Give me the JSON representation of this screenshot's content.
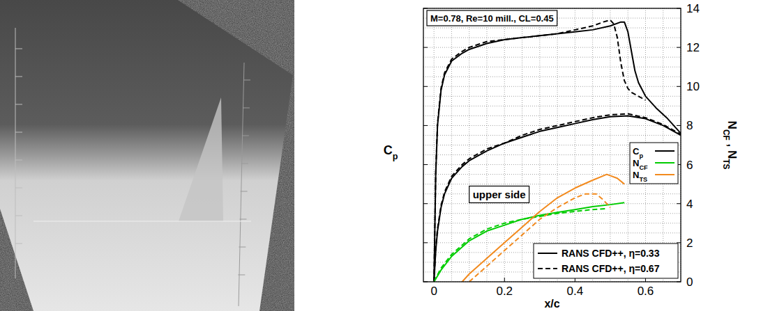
{
  "chart_data": {
    "type": "line",
    "xlabel": "x/c",
    "ylabel_left": "Cp",
    "ylabel_right": "NCF , NTS",
    "annotations": [
      "M=0.78, Re=10 mill., CL=0.45",
      "upper side"
    ],
    "cases": [
      {
        "label": "RANS CFD++, η=0.33",
        "line_style": "solid"
      },
      {
        "label": "RANS CFD++, η=0.67",
        "line_style": "dashed"
      }
    ],
    "xlim": [
      -0.03,
      0.7
    ],
    "xticks": [
      0,
      0.2,
      0.4,
      0.6
    ],
    "ylim": [
      0,
      14
    ],
    "yticks": [
      0,
      2,
      4,
      6,
      8,
      10,
      12,
      14
    ],
    "grid": true,
    "legend": "right",
    "series": [
      {
        "name": "Cp",
        "color": "#000000",
        "line_style": "solid",
        "x": [
          0,
          0.005,
          0.01,
          0.02,
          0.03,
          0.05,
          0.08,
          0.1,
          0.15,
          0.2,
          0.25,
          0.3,
          0.35,
          0.4,
          0.45,
          0.5,
          0.53,
          0.54,
          0.55,
          0.56,
          0.57,
          0.58,
          0.6,
          0.63,
          0.66,
          0.7
        ],
        "values": [
          0,
          5.5,
          8.0,
          9.8,
          10.6,
          11.3,
          11.7,
          11.9,
          12.2,
          12.4,
          12.5,
          12.6,
          12.7,
          12.8,
          12.9,
          13.1,
          13.3,
          13.3,
          12.8,
          11.8,
          10.8,
          10.2,
          9.5,
          8.9,
          8.4,
          7.6
        ]
      },
      {
        "name": "Cp",
        "color": "#000000",
        "line_style": "dashed",
        "x": [
          0,
          0.005,
          0.01,
          0.02,
          0.03,
          0.05,
          0.08,
          0.1,
          0.15,
          0.2,
          0.25,
          0.3,
          0.35,
          0.4,
          0.45,
          0.48,
          0.5,
          0.51,
          0.52,
          0.53,
          0.54,
          0.55,
          0.56,
          0.58,
          0.6
        ],
        "values": [
          0,
          5.6,
          8.1,
          9.9,
          10.7,
          11.4,
          11.8,
          12.0,
          12.3,
          12.4,
          12.5,
          12.6,
          12.7,
          12.9,
          13.1,
          13.3,
          13.4,
          13.2,
          12.5,
          11.2,
          10.3,
          9.9,
          9.7,
          9.5,
          9.3
        ]
      },
      {
        "name": "Cp",
        "color": "#000000",
        "line_style": "solid",
        "x": [
          0,
          0.005,
          0.01,
          0.02,
          0.03,
          0.05,
          0.08,
          0.1,
          0.15,
          0.2,
          0.25,
          0.3,
          0.35,
          0.4,
          0.45,
          0.5,
          0.55,
          0.6,
          0.65,
          0.7
        ],
        "values": [
          0,
          1.6,
          2.6,
          3.8,
          4.5,
          5.3,
          5.9,
          6.2,
          6.7,
          7.1,
          7.4,
          7.7,
          7.9,
          8.1,
          8.3,
          8.45,
          8.5,
          8.35,
          8.0,
          7.5
        ]
      },
      {
        "name": "Cp",
        "color": "#000000",
        "line_style": "dashed",
        "x": [
          0,
          0.005,
          0.01,
          0.02,
          0.03,
          0.05,
          0.08,
          0.1,
          0.15,
          0.2,
          0.25,
          0.3,
          0.35,
          0.4,
          0.45,
          0.5,
          0.55,
          0.6,
          0.65,
          0.7
        ],
        "values": [
          0,
          1.7,
          2.7,
          3.9,
          4.6,
          5.4,
          6.0,
          6.3,
          6.8,
          7.1,
          7.5,
          7.8,
          8.0,
          8.2,
          8.4,
          8.55,
          8.6,
          8.4,
          8.05,
          7.55
        ]
      },
      {
        "name": "NCF",
        "color": "#00cc00",
        "line_style": "solid",
        "x": [
          0,
          0.02,
          0.05,
          0.1,
          0.15,
          0.2,
          0.25,
          0.3,
          0.35,
          0.4,
          0.45,
          0.5,
          0.54
        ],
        "values": [
          0,
          0.6,
          1.3,
          2.1,
          2.6,
          2.9,
          3.2,
          3.4,
          3.55,
          3.7,
          3.85,
          3.95,
          4.05
        ]
      },
      {
        "name": "NCF",
        "color": "#00cc00",
        "line_style": "dashed",
        "x": [
          0,
          0.02,
          0.05,
          0.1,
          0.15,
          0.2,
          0.25,
          0.3,
          0.35,
          0.4,
          0.45,
          0.49
        ],
        "values": [
          0,
          0.7,
          1.4,
          2.2,
          2.7,
          3.0,
          3.2,
          3.35,
          3.5,
          3.6,
          3.7,
          3.75
        ]
      },
      {
        "name": "NTS",
        "color": "#f28a1e",
        "line_style": "solid",
        "x": [
          0.08,
          0.1,
          0.15,
          0.2,
          0.25,
          0.3,
          0.35,
          0.4,
          0.45,
          0.49,
          0.52,
          0.54
        ],
        "values": [
          0,
          0.4,
          1.2,
          2.0,
          2.8,
          3.6,
          4.3,
          4.8,
          5.2,
          5.5,
          5.3,
          5.0
        ]
      },
      {
        "name": "NTS",
        "color": "#f28a1e",
        "line_style": "dashed",
        "x": [
          0.1,
          0.15,
          0.2,
          0.25,
          0.3,
          0.35,
          0.4,
          0.43,
          0.46,
          0.48,
          0.5
        ],
        "values": [
          0,
          0.8,
          1.6,
          2.4,
          3.2,
          3.8,
          4.3,
          4.5,
          4.5,
          4.2,
          3.8
        ]
      }
    ]
  }
}
